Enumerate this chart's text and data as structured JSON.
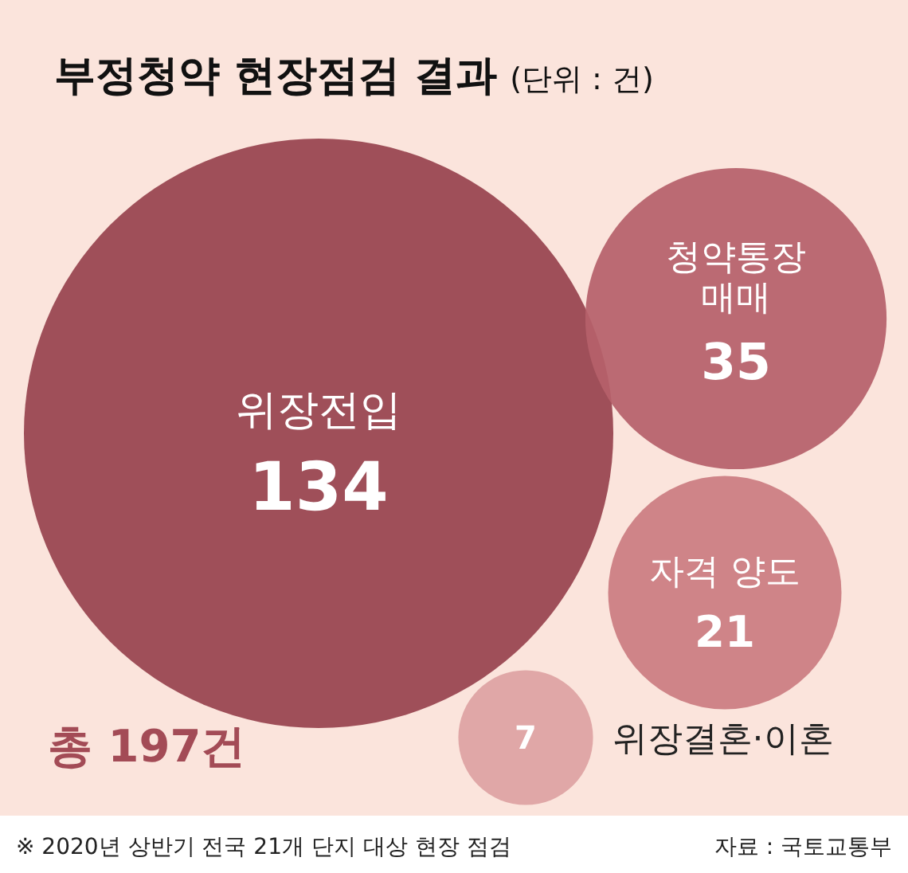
{
  "chart_data": {
    "type": "other",
    "title": "부정청약 현장점검 결과",
    "subtitle": "(단위 : 건)",
    "categories": [
      "위장전입",
      "청약통장 매매",
      "자격 양도",
      "위장결혼·이혼"
    ],
    "values": [
      134,
      35,
      21,
      7
    ],
    "data_labels": true,
    "colors": [
      "#98444f",
      "#b6616b",
      "#cb7d81",
      "#dea3a2"
    ],
    "annotations": [
      "총 197건",
      "※ 2020년 상반기 전국 21개 단지 대상 현장 점검",
      "자료 : 국토교통부"
    ]
  }
}
